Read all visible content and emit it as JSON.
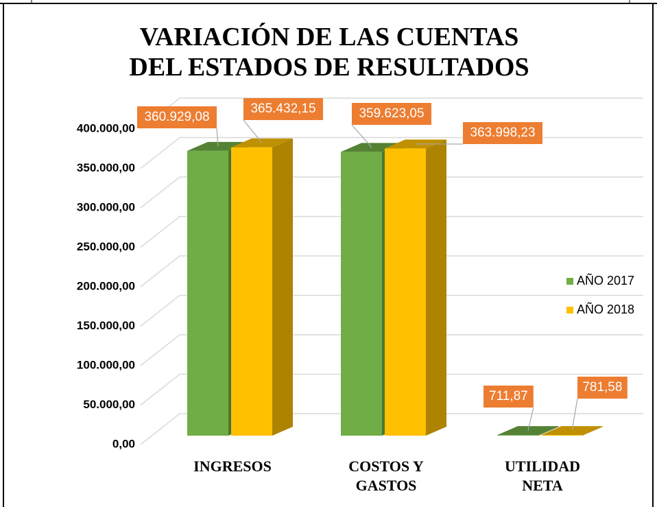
{
  "chart_data": {
    "type": "bar3d",
    "title": "VARIACIÓN DE LAS CUENTAS DEL ESTADOS DE RESULTADOS",
    "categories": [
      "INGRESOS",
      "COSTOS Y GASTOS",
      "UTILIDAD NETA"
    ],
    "series": [
      {
        "name": "AÑO 2017",
        "color": "#70ad47",
        "values": [
          360929.08,
          359623.05,
          711.87
        ],
        "value_labels": [
          "360.929,08",
          "359.623,05",
          "711,87"
        ]
      },
      {
        "name": "AÑO 2018",
        "color": "#ffc000",
        "values": [
          365432.15,
          363998.23,
          781.58
        ],
        "value_labels": [
          "365.432,15",
          "363.998,23",
          "781,58"
        ]
      }
    ],
    "ylim": [
      0,
      400000
    ],
    "yticks": [
      {
        "value": 0,
        "label": "0,00"
      },
      {
        "value": 50000,
        "label": "50.000,00"
      },
      {
        "value": 100000,
        "label": "100.000,00"
      },
      {
        "value": 150000,
        "label": "150.000,00"
      },
      {
        "value": 200000,
        "label": "200.000,00"
      },
      {
        "value": 250000,
        "label": "250.000,00"
      },
      {
        "value": 300000,
        "label": "300.000,00"
      },
      {
        "value": 350000,
        "label": "350.000,00"
      },
      {
        "value": 400000,
        "label": "400.000,00"
      }
    ],
    "grid": true,
    "legend": "right"
  }
}
